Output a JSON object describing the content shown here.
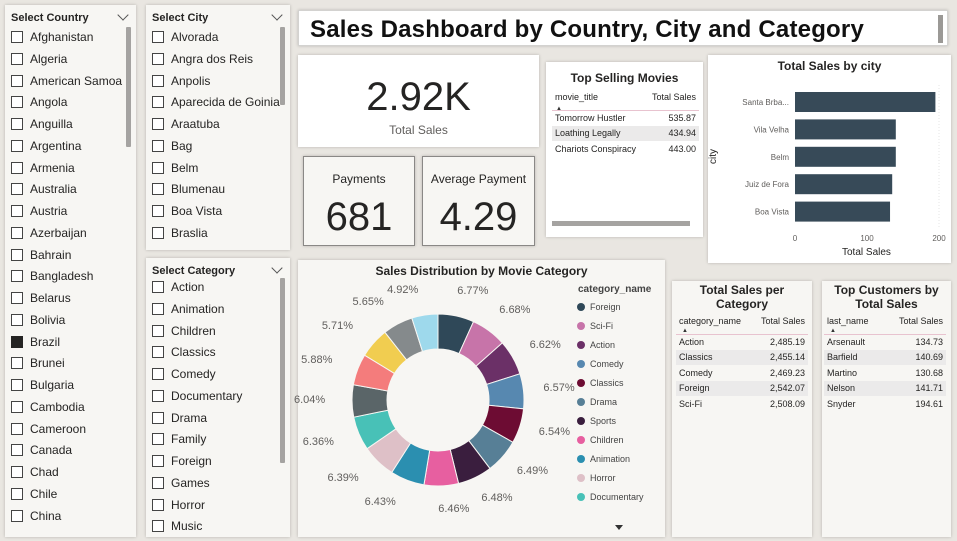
{
  "header": {
    "title": "Sales Dashboard by Country, City and Category"
  },
  "country_slicer": {
    "label": "Select Country",
    "items": [
      {
        "name": "Afghanistan",
        "checked": false
      },
      {
        "name": "Algeria",
        "checked": false
      },
      {
        "name": "American Samoa",
        "checked": false
      },
      {
        "name": "Angola",
        "checked": false
      },
      {
        "name": "Anguilla",
        "checked": false
      },
      {
        "name": "Argentina",
        "checked": false
      },
      {
        "name": "Armenia",
        "checked": false
      },
      {
        "name": "Australia",
        "checked": false
      },
      {
        "name": "Austria",
        "checked": false
      },
      {
        "name": "Azerbaijan",
        "checked": false
      },
      {
        "name": "Bahrain",
        "checked": false
      },
      {
        "name": "Bangladesh",
        "checked": false
      },
      {
        "name": "Belarus",
        "checked": false
      },
      {
        "name": "Bolivia",
        "checked": false
      },
      {
        "name": "Brazil",
        "checked": true
      },
      {
        "name": "Brunei",
        "checked": false
      },
      {
        "name": "Bulgaria",
        "checked": false
      },
      {
        "name": "Cambodia",
        "checked": false
      },
      {
        "name": "Cameroon",
        "checked": false
      },
      {
        "name": "Canada",
        "checked": false
      },
      {
        "name": "Chad",
        "checked": false
      },
      {
        "name": "Chile",
        "checked": false
      },
      {
        "name": "China",
        "checked": false
      }
    ]
  },
  "city_slicer": {
    "label": "Select City",
    "items": [
      "Alvorada",
      "Angra dos Reis",
      "Anpolis",
      "Aparecida de Goinia",
      "Araatuba",
      "Bag",
      "Belm",
      "Blumenau",
      "Boa Vista",
      "Braslia"
    ]
  },
  "category_slicer": {
    "label": "Select Category",
    "items": [
      "Action",
      "Animation",
      "Children",
      "Classics",
      "Comedy",
      "Documentary",
      "Drama",
      "Family",
      "Foreign",
      "Games",
      "Horror",
      "Music"
    ]
  },
  "cards": {
    "total_sales": {
      "value": "2.92K",
      "label": "Total Sales"
    },
    "payments": {
      "value": "681",
      "label": "Payments"
    },
    "average_payment": {
      "value": "4.29",
      "label": "Average Payment"
    }
  },
  "top_movies": {
    "title": "Top Selling Movies",
    "columns": [
      "movie_title",
      "Total Sales"
    ],
    "rows": [
      [
        "Tomorrow Hustler",
        "535.87"
      ],
      [
        "Loathing Legally",
        "434.94"
      ],
      [
        "Chariots Conspiracy",
        "443.00"
      ]
    ]
  },
  "city_chart": {
    "title": "Total Sales by city",
    "color": "#374a58",
    "chart_data": {
      "type": "bar",
      "orientation": "horizontal",
      "title": "Total Sales by city",
      "xlabel": "Total Sales",
      "ylabel": "city",
      "categories": [
        "Santa Brba...",
        "Vila Velha",
        "Belm",
        "Juiz de Fora",
        "Boa Vista"
      ],
      "values": [
        195,
        140,
        140,
        135,
        132
      ],
      "xlim": [
        0,
        200
      ],
      "xticks": [
        "0",
        "100",
        "200"
      ],
      "grid": false
    }
  },
  "donut": {
    "title": "Sales Distribution by Movie Category",
    "legend_title": "category_name",
    "chart_data": {
      "type": "pie",
      "title": "Sales Distribution by Movie Category",
      "legend_placement": "right",
      "legend_entries": [
        "Foreign",
        "Sci-Fi",
        "Action",
        "Comedy",
        "Classics",
        "Drama",
        "Sports",
        "Children",
        "Animation",
        "Horror",
        "Documentary"
      ],
      "slices": [
        {
          "label": "Foreign",
          "value": 6.77,
          "color": "#2f4858"
        },
        {
          "label": "Sci-Fi",
          "value": 6.68,
          "color": "#c774a9"
        },
        {
          "label": "Action",
          "value": 6.62,
          "color": "#6b3067"
        },
        {
          "label": "Comedy",
          "value": 6.57,
          "color": "#5788b0"
        },
        {
          "label": "Classics",
          "value": 6.54,
          "color": "#6d0c33"
        },
        {
          "label": "Drama",
          "value": 6.49,
          "color": "#577f96"
        },
        {
          "label": "Sports",
          "value": 6.48,
          "color": "#3a1e3e"
        },
        {
          "label": "Children",
          "value": 6.46,
          "color": "#e75fa0"
        },
        {
          "label": "Animation",
          "value": 6.43,
          "color": "#2b8fb0"
        },
        {
          "label": "Horror",
          "value": 6.39,
          "color": "#dec0c7"
        },
        {
          "label": "Documentary",
          "value": 6.36,
          "color": "#48c1b7"
        },
        {
          "label": "",
          "value": 6.04,
          "color": "#5a6568"
        },
        {
          "label": "",
          "value": 5.88,
          "color": "#f47c7c"
        },
        {
          "label": "",
          "value": 5.71,
          "color": "#f1cd50"
        },
        {
          "label": "",
          "value": 5.65,
          "color": "#858a8c"
        },
        {
          "label": "",
          "value": 4.92,
          "color": "#9ed9ec"
        }
      ]
    }
  },
  "category_table": {
    "title": "Total Sales per Category",
    "columns": [
      "category_name",
      "Total Sales"
    ],
    "rows": [
      [
        "Action",
        "2,485.19"
      ],
      [
        "Classics",
        "2,455.14"
      ],
      [
        "Comedy",
        "2,469.23"
      ],
      [
        "Foreign",
        "2,542.07"
      ],
      [
        "Sci-Fi",
        "2,508.09"
      ]
    ]
  },
  "customers_table": {
    "title": "Top Customers by Total Sales",
    "columns": [
      "last_name",
      "Total Sales"
    ],
    "rows": [
      [
        "Arsenault",
        "134.73"
      ],
      [
        "Barfield",
        "140.69"
      ],
      [
        "Martino",
        "130.68"
      ],
      [
        "Nelson",
        "141.71"
      ],
      [
        "Snyder",
        "194.61"
      ]
    ]
  }
}
